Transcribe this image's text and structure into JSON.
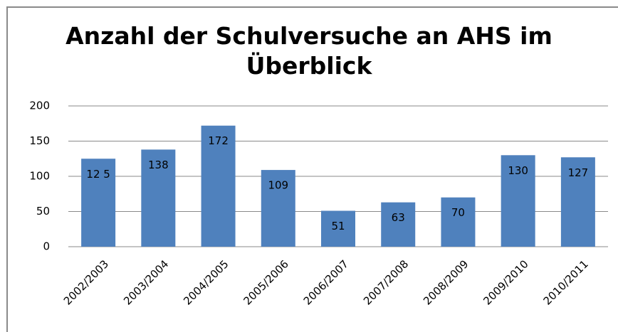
{
  "chart_data": {
    "type": "bar",
    "title": "Anzahl der Schulversuche an AHS im Überblick",
    "categories": [
      "2002/2003",
      "2003/2004",
      "2004/2005",
      "2005/2006",
      "2006/2007",
      "2007/2008",
      "2008/2009",
      "2009/2010",
      "2010/2011"
    ],
    "values": [
      125,
      138,
      172,
      109,
      51,
      63,
      70,
      130,
      127
    ],
    "value_labels": [
      "12 5",
      "138",
      "172",
      "109",
      "51",
      "63",
      "70",
      "130",
      "127"
    ],
    "color": "#4f81bd",
    "ylim": [
      0,
      200
    ],
    "yticks": [
      0,
      50,
      100,
      150,
      200
    ],
    "grid": true
  }
}
